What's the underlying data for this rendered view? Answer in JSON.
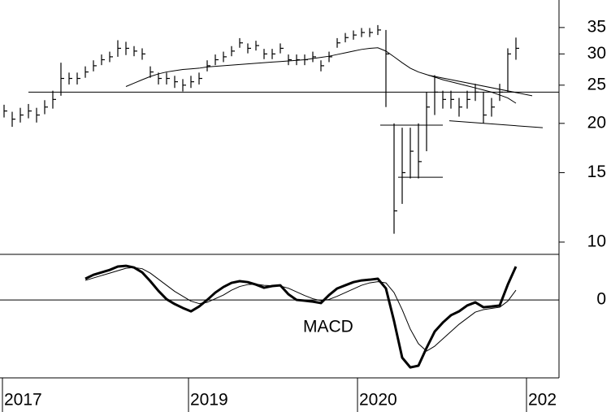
{
  "chart_data": [
    {
      "type": "ohlc",
      "log_scale": true,
      "color": "#000000",
      "x": [
        0,
        1,
        2,
        3,
        4,
        5,
        6,
        7,
        8,
        9,
        10,
        11,
        12,
        13,
        14,
        15,
        16,
        17,
        18,
        19,
        20,
        21,
        22,
        23,
        24,
        25,
        26,
        27,
        28,
        29,
        30,
        31,
        32,
        33,
        34,
        35,
        36,
        37,
        38,
        39,
        40,
        41,
        42,
        43,
        44,
        45,
        46,
        47,
        48,
        49,
        50,
        51,
        52,
        53,
        54,
        55,
        56,
        57,
        58,
        59,
        60,
        61,
        62,
        63
      ],
      "high": [
        22.3,
        21.4,
        21.9,
        22.4,
        21.9,
        22.9,
        24.2,
        28.5,
        26.9,
        26.9,
        27.9,
        28.9,
        29.9,
        30.4,
        32.5,
        32.2,
        31.4,
        31,
        27.9,
        26.9,
        26.9,
        26.4,
        25.9,
        26.4,
        26.9,
        28.9,
        29.9,
        30.4,
        31.4,
        32.9,
        31.9,
        32.4,
        30.9,
        30.9,
        31.9,
        29.9,
        29.9,
        29.9,
        30.4,
        28.9,
        30.4,
        32.9,
        33.9,
        34.4,
        34.9,
        34.9,
        35.5,
        34.5,
        20,
        19.5,
        19.5,
        20,
        24,
        26.5,
        24.2,
        24.2,
        23.2,
        24.2,
        25.2,
        24,
        23.2,
        25.2,
        31,
        33
      ],
      "low": [
        20.7,
        19.6,
        20.1,
        20.6,
        20.1,
        21.1,
        21.8,
        23.5,
        25.1,
        25.1,
        26.1,
        27.1,
        28.1,
        28.6,
        29.5,
        29.8,
        29.6,
        29,
        26.1,
        25.1,
        25.1,
        24.6,
        24.1,
        24.6,
        25.1,
        27.1,
        28.1,
        28.6,
        29.6,
        31.1,
        30.1,
        30.6,
        29.1,
        29.1,
        30.1,
        28.1,
        28.1,
        28.1,
        28.6,
        27.1,
        28.6,
        31.1,
        32.1,
        32.6,
        33.1,
        33.1,
        33.5,
        22,
        10.5,
        12.5,
        14.5,
        14.5,
        17,
        21,
        21.8,
        21.8,
        20.8,
        21.8,
        22.8,
        20,
        20.8,
        22.8,
        24,
        29
      ],
      "close": [
        21.5,
        20.5,
        21,
        21.5,
        21,
        22,
        23,
        26,
        26,
        26,
        27,
        28,
        29,
        29.5,
        31,
        31,
        30.5,
        30,
        27,
        26,
        26,
        25.5,
        25,
        25.5,
        26,
        28,
        29,
        29.5,
        30.5,
        32,
        31,
        31.5,
        30,
        30,
        31,
        29,
        29,
        29,
        29.5,
        28,
        29.5,
        32,
        33,
        33.5,
        34,
        34,
        34.5,
        30,
        12,
        15,
        17,
        16,
        22,
        24,
        23,
        23,
        22,
        23,
        24,
        21,
        22,
        24,
        30,
        31
      ],
      "moving_average": [
        null,
        null,
        null,
        null,
        null,
        null,
        null,
        null,
        null,
        null,
        null,
        null,
        null,
        null,
        null,
        24.8,
        25.3,
        25.8,
        26.3,
        26.7,
        27.0,
        27.2,
        27.4,
        27.5,
        27.6,
        27.8,
        27.9,
        28.0,
        28.1,
        28.2,
        28.3,
        28.4,
        28.5,
        28.6,
        28.7,
        28.8,
        28.9,
        29.0,
        29.2,
        29.4,
        29.6,
        29.9,
        30.2,
        30.5,
        30.8,
        31.0,
        31.1,
        30.5,
        29.5,
        28.5,
        27.6,
        27.0,
        26.6,
        26.2,
        25.8,
        25.5,
        25.2,
        24.9,
        24.6,
        24.3,
        24.0,
        23.6,
        23.2,
        22.5
      ],
      "trendlines": [
        {
          "x": [
            3,
            68.3
          ],
          "y": [
            24,
            24
          ]
        },
        {
          "x": [
            46.3,
            54
          ],
          "y": [
            19.8,
            19.8
          ]
        },
        {
          "x": [
            48.5,
            54
          ],
          "y": [
            14.6,
            14.6
          ]
        },
        {
          "x": [
            52.2,
            65
          ],
          "y": [
            26.5,
            23.5
          ]
        },
        {
          "x": [
            54.8,
            66.3
          ],
          "y": [
            20.3,
            19.5
          ]
        }
      ],
      "xlim": [
        -0.5,
        68.3
      ],
      "ylim": [
        9.31,
        41.1
      ],
      "yticks": [
        10,
        15,
        20,
        25,
        30,
        35
      ]
    },
    {
      "type": "line",
      "annotation": "MACD",
      "x": [
        0,
        1,
        2,
        3,
        4,
        5,
        6,
        7,
        8,
        9,
        10,
        11,
        12,
        13,
        14,
        15,
        16,
        17,
        18,
        19,
        20,
        21,
        22,
        23,
        24,
        25,
        26,
        27,
        28,
        29,
        30,
        31,
        32,
        33,
        34,
        35,
        36,
        37,
        38,
        39,
        40,
        41,
        42,
        43,
        44,
        45,
        46,
        47,
        48,
        49,
        50,
        51,
        52,
        53,
        54,
        55,
        56,
        57,
        58,
        59,
        60,
        61,
        62,
        63
      ],
      "series": [
        {
          "color": "#000000",
          "width": 3,
          "values": [
            null,
            null,
            null,
            null,
            null,
            null,
            null,
            null,
            null,
            null,
            0.87,
            1.03,
            1.13,
            1.23,
            1.37,
            1.4,
            1.33,
            1.13,
            0.77,
            0.37,
            0.03,
            -0.17,
            -0.33,
            -0.47,
            -0.27,
            0,
            0.3,
            0.53,
            0.7,
            0.77,
            0.73,
            0.63,
            0.5,
            0.57,
            0.6,
            0.23,
            0,
            -0.03,
            -0.07,
            -0.13,
            0.2,
            0.47,
            0.6,
            0.73,
            0.8,
            0.83,
            0.87,
            0.47,
            -0.87,
            -2.37,
            -2.77,
            -2.7,
            -1.97,
            -1.3,
            -0.93,
            -0.63,
            -0.47,
            -0.23,
            -0.1,
            -0.3,
            -0.27,
            -0.23,
            0.63,
            1.37
          ]
        },
        {
          "color": "#000000",
          "width": 1,
          "values": [
            null,
            null,
            null,
            null,
            null,
            null,
            null,
            null,
            null,
            null,
            0.8,
            0.9,
            1.0,
            1.1,
            1.2,
            1.3,
            1.33,
            1.28,
            1.1,
            0.85,
            0.6,
            0.35,
            0.15,
            -0.05,
            -0.15,
            -0.1,
            0.05,
            0.2,
            0.4,
            0.55,
            0.63,
            0.65,
            0.6,
            0.58,
            0.57,
            0.48,
            0.33,
            0.18,
            0.05,
            -0.03,
            0.02,
            0.15,
            0.3,
            0.45,
            0.6,
            0.7,
            0.75,
            0.7,
            0.3,
            -0.4,
            -1.2,
            -1.8,
            -2.1,
            -1.9,
            -1.6,
            -1.3,
            -1.0,
            -0.75,
            -0.5,
            -0.4,
            -0.35,
            -0.3,
            -0.05,
            0.4
          ]
        }
      ],
      "xlim": [
        -0.5,
        68.3
      ],
      "xticks": [
        {
          "value": -0.2,
          "label": "2017"
        },
        {
          "value": 22.7,
          "label": "2019"
        },
        {
          "value": 43.5,
          "label": "2020"
        },
        {
          "value": 64.3,
          "label": "202"
        }
      ],
      "ylim": [
        -3.2,
        1.87
      ],
      "yticks": [
        0
      ]
    }
  ]
}
